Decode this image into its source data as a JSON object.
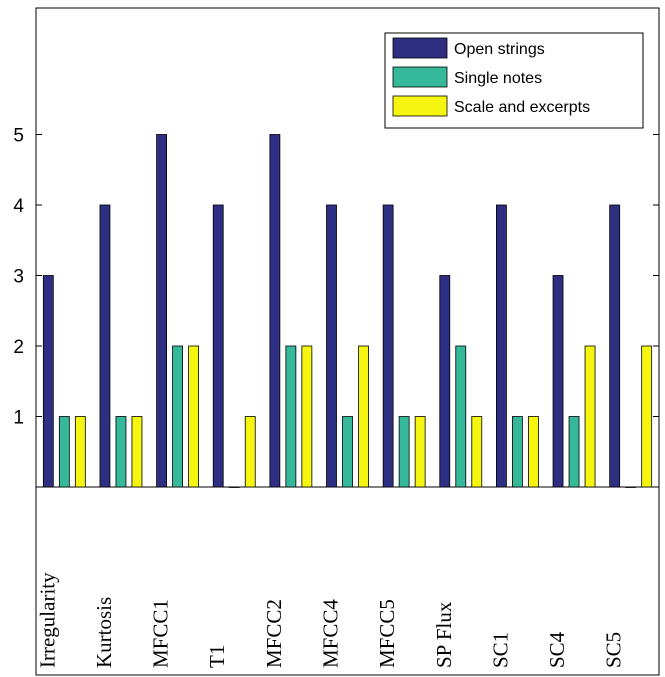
{
  "chart_data": {
    "type": "bar",
    "categories": [
      "Irregularity",
      "Kurtosis",
      "MFCC1",
      "T1",
      "MFCC2",
      "MFCC4",
      "MFCC5",
      "SP Flux",
      "SC1",
      "SC4",
      "SC5"
    ],
    "series": [
      {
        "name": "Open strings",
        "color": "#2e2e82",
        "values": [
          3,
          4,
          5,
          4,
          5,
          4,
          4,
          3,
          4,
          3,
          4
        ]
      },
      {
        "name": "Single notes",
        "color": "#36b89a",
        "values": [
          1,
          1,
          2,
          0,
          2,
          1,
          1,
          2,
          1,
          1,
          0
        ]
      },
      {
        "name": "Scale and excerpts",
        "color": "#f5f50f",
        "values": [
          1,
          1,
          2,
          1,
          2,
          2,
          1,
          1,
          1,
          2,
          2
        ]
      }
    ],
    "yticks": [
      1,
      2,
      3,
      4,
      5
    ],
    "ylim": [
      0,
      6.4
    ],
    "xlabel": "",
    "ylabel": "",
    "title": "",
    "legend_position": "top-right",
    "grid": false
  }
}
